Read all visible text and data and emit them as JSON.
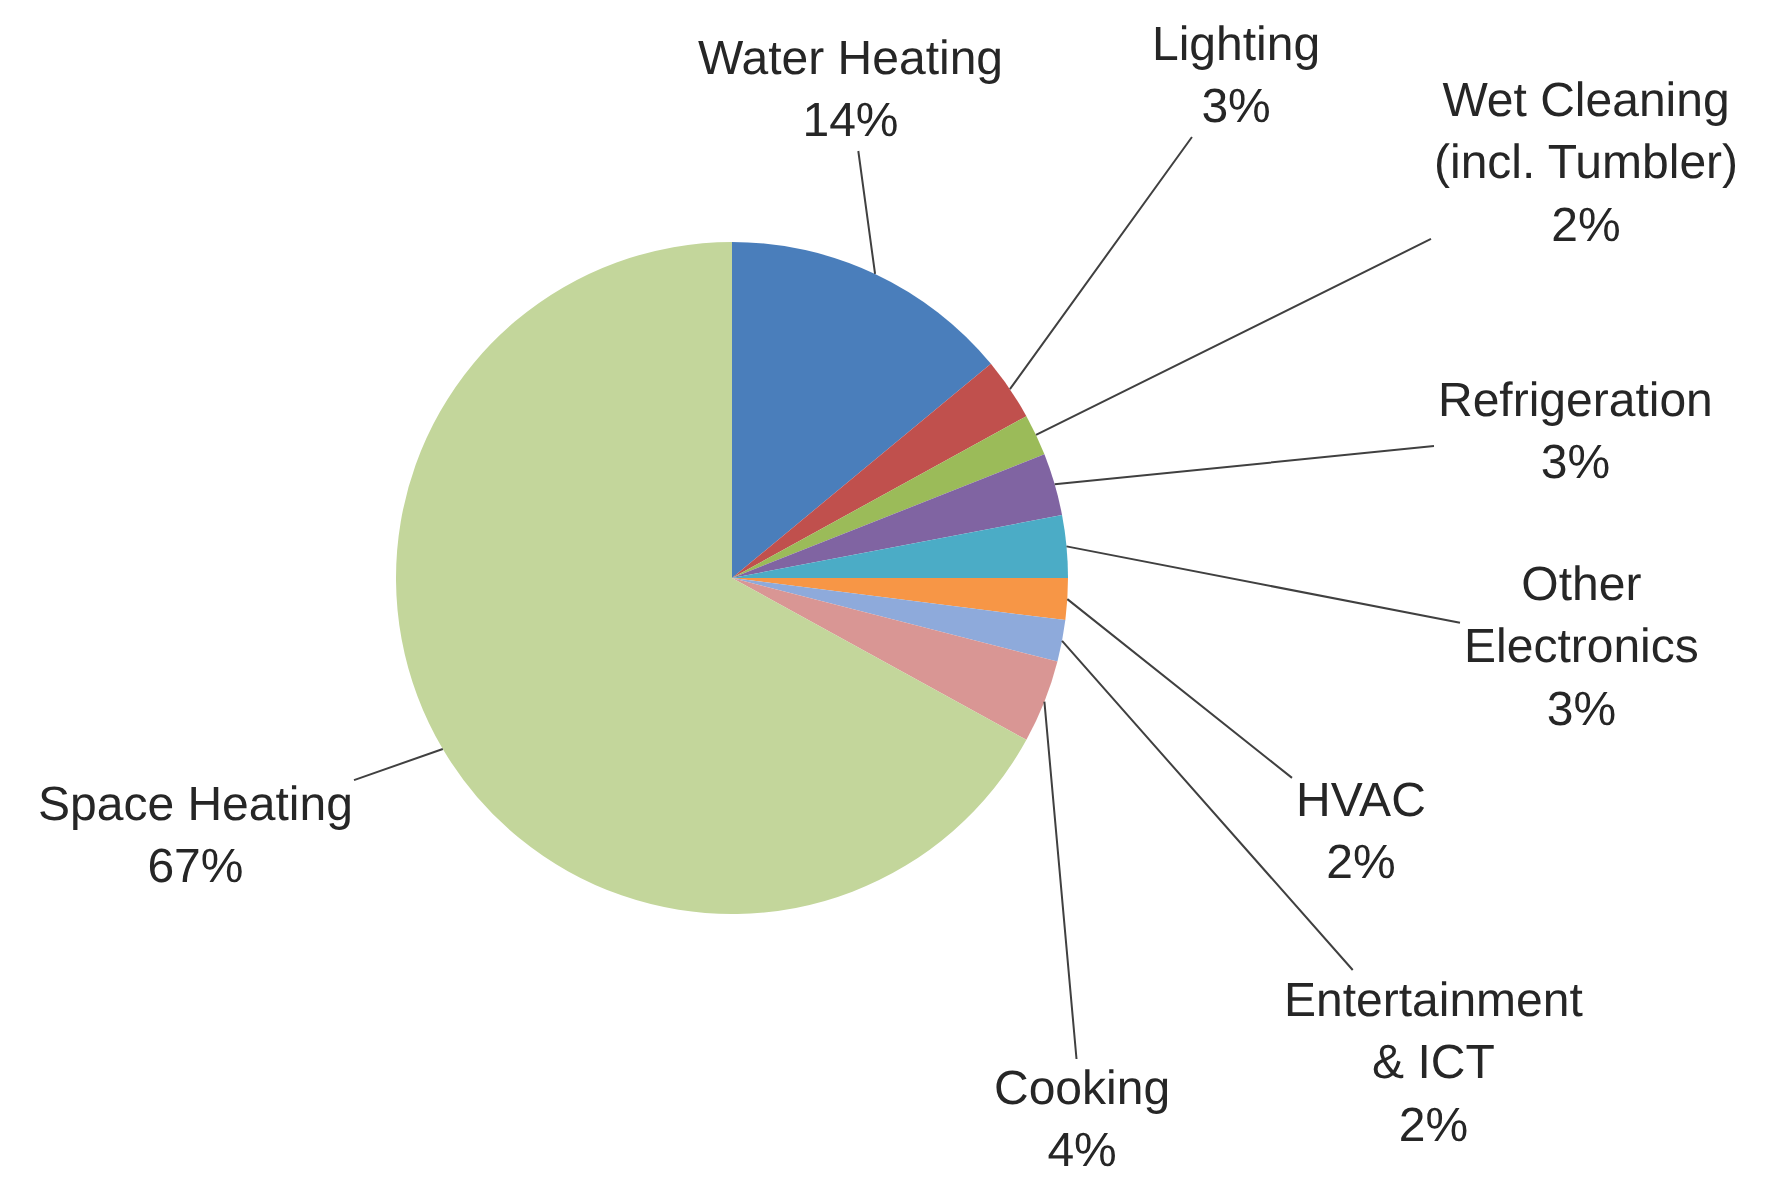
{
  "chart_data": {
    "type": "pie",
    "categories": [
      "Water Heating",
      "Lighting",
      "Wet Cleaning (incl. Tumbler)",
      "Refrigeration",
      "Other Electronics",
      "HVAC",
      "Entertainment & ICT",
      "Cooking",
      "Space Heating"
    ],
    "values": [
      14,
      3,
      2,
      3,
      3,
      2,
      2,
      4,
      67
    ],
    "value_labels": [
      "14%",
      "3%",
      "2%",
      "3%",
      "3%",
      "2%",
      "2%",
      "4%",
      "67%"
    ],
    "colors": [
      "#4a7ebb",
      "#c0504d",
      "#9bbb59",
      "#8064a2",
      "#4bacc6",
      "#f79646",
      "#8eaadb",
      "#d99694",
      "#c3d69b"
    ],
    "legend": false
  }
}
